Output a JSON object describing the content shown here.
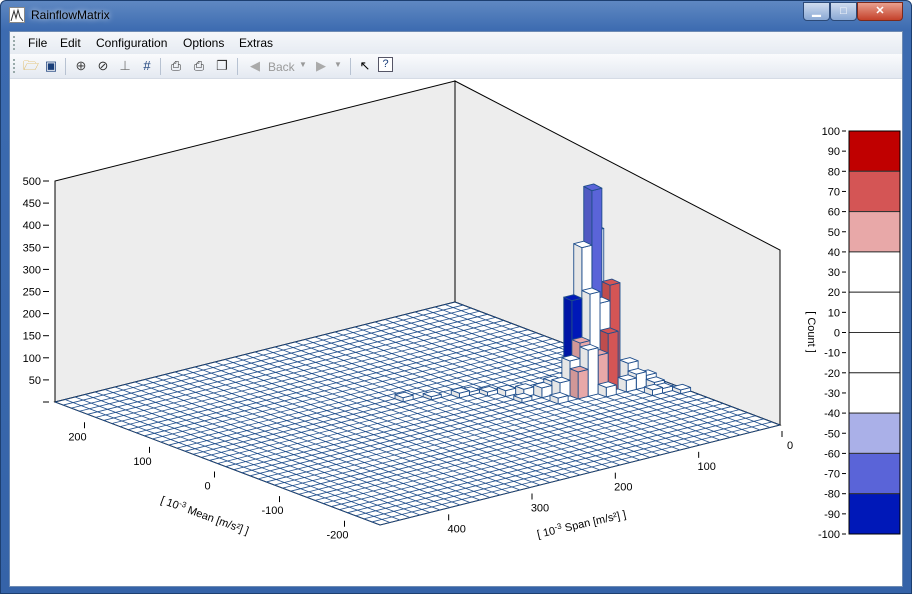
{
  "window": {
    "title": "RainflowMatrix",
    "buttons": [
      "minimize",
      "maximize",
      "close"
    ]
  },
  "menu": [
    "File",
    "Edit",
    "Configuration",
    "Options",
    "Extras"
  ],
  "toolbar": {
    "items": [
      {
        "icon": "open-folder-icon"
      },
      {
        "icon": "save-icon"
      },
      {
        "icon": "zoom-in-icon"
      },
      {
        "icon": "zoom-reset-icon"
      },
      {
        "icon": "axis-icon"
      },
      {
        "icon": "grid-icon"
      },
      {
        "icon": "print-preview-icon"
      },
      {
        "icon": "print-icon"
      },
      {
        "icon": "copy-icon"
      },
      {
        "icon": "back-icon"
      },
      {
        "icon": "forward-icon"
      },
      {
        "icon": "pointer-icon"
      },
      {
        "icon": "help-icon"
      }
    ],
    "back_label": "Back"
  },
  "chart_data": {
    "type": "bar3d",
    "x_axis": {
      "label_prefix": "[ 10",
      "label_exp": "-3",
      "label_suffix": " Span [m/s²] ]",
      "range": [
        0,
        480
      ],
      "ticks": [
        "0",
        "100",
        "200",
        "300",
        "400"
      ],
      "tick_values": [
        0,
        100,
        200,
        300,
        400
      ]
    },
    "y_axis": {
      "label_prefix": "[ 10",
      "label_exp": "-3",
      "label_suffix": " Mean [m/s²] ]",
      "range": [
        -250,
        250
      ],
      "ticks": [
        "200",
        "100",
        "0",
        "-100",
        "-200"
      ],
      "tick_values": [
        200,
        100,
        0,
        -100,
        -200
      ]
    },
    "z_axis": {
      "range": [
        0,
        500
      ],
      "ticks": [
        "",
        "50",
        "100",
        "150",
        "200",
        "250",
        "300",
        "350",
        "400",
        "450",
        "500"
      ],
      "tick_values": [
        0,
        50,
        100,
        150,
        200,
        250,
        300,
        350,
        400,
        450,
        500
      ]
    },
    "legend": {
      "title": "[ Count ]",
      "ticks": [
        "100",
        "90",
        "80",
        "70",
        "60",
        "50",
        "40",
        "30",
        "20",
        "10",
        "0",
        "-10",
        "-20",
        "-30",
        "-40",
        "-50",
        "-60",
        "-70",
        "-80",
        "-90",
        "-100"
      ],
      "bands": [
        {
          "from": 80,
          "to": 100,
          "color": "#c00000"
        },
        {
          "from": 60,
          "to": 80,
          "color": "#d45555"
        },
        {
          "from": 40,
          "to": 60,
          "color": "#e8a8a8"
        },
        {
          "from": 20,
          "to": 40,
          "color": "#ffffff"
        },
        {
          "from": 0,
          "to": 20,
          "color": "#ffffff"
        },
        {
          "from": -20,
          "to": 0,
          "color": "#ffffff"
        },
        {
          "from": -40,
          "to": -20,
          "color": "#ffffff"
        },
        {
          "from": -60,
          "to": -40,
          "color": "#aab0e8"
        },
        {
          "from": -80,
          "to": -60,
          "color": "#5a64d8"
        },
        {
          "from": -100,
          "to": -80,
          "color": "#0018b8"
        }
      ]
    },
    "cell": {
      "span": 12,
      "mean": 12.5
    },
    "bars": [
      {
        "span": 48,
        "mean": -37.5,
        "count": 500,
        "color": "#5a64d8"
      },
      {
        "span": 36,
        "mean": -25,
        "count": 380,
        "color": "#ffffff"
      },
      {
        "span": 60,
        "mean": -37.5,
        "count": 360,
        "color": "#ffffff"
      },
      {
        "span": 36,
        "mean": -50,
        "count": 260,
        "color": "#d45555"
      },
      {
        "span": 48,
        "mean": -50,
        "count": 220,
        "color": "#ffffff"
      },
      {
        "span": 48,
        "mean": -62.5,
        "count": 150,
        "color": "#d45555"
      },
      {
        "span": 60,
        "mean": -50,
        "count": 250,
        "color": "#ffffff"
      },
      {
        "span": 72,
        "mean": -37.5,
        "count": 230,
        "color": "#0018b8"
      },
      {
        "span": 72,
        "mean": -50,
        "count": 130,
        "color": "#e8a8a8"
      },
      {
        "span": 60,
        "mean": -62.5,
        "count": 100,
        "color": "#e8a8a8"
      },
      {
        "span": 72,
        "mean": -62.5,
        "count": 120,
        "color": "#ffffff"
      },
      {
        "span": 84,
        "mean": -62.5,
        "count": 70,
        "color": "#e8a8a8"
      },
      {
        "span": 84,
        "mean": -50,
        "count": 90,
        "color": "#ffffff"
      },
      {
        "span": 24,
        "mean": -62.5,
        "count": 60,
        "color": "#ffffff"
      },
      {
        "span": 24,
        "mean": -75,
        "count": 40,
        "color": "#ffffff"
      },
      {
        "span": 12,
        "mean": -75,
        "count": 30,
        "color": "#ffffff"
      },
      {
        "span": 12,
        "mean": -87.5,
        "count": 20,
        "color": "#ffffff"
      },
      {
        "span": 36,
        "mean": -75,
        "count": 30,
        "color": "#ffffff"
      },
      {
        "span": 96,
        "mean": -50,
        "count": 40,
        "color": "#ffffff"
      },
      {
        "span": 96,
        "mean": -37.5,
        "count": 35,
        "color": "#ffffff"
      },
      {
        "span": 108,
        "mean": -37.5,
        "count": 25,
        "color": "#ffffff"
      },
      {
        "span": 60,
        "mean": -75,
        "count": 25,
        "color": "#ffffff"
      },
      {
        "span": 120,
        "mean": -25,
        "count": 20,
        "color": "#ffffff"
      },
      {
        "span": 144,
        "mean": 0,
        "count": 10,
        "color": "#ffffff"
      },
      {
        "span": 168,
        "mean": 12.5,
        "count": 12,
        "color": "#ffffff"
      },
      {
        "span": 192,
        "mean": 25,
        "count": 8,
        "color": "#ffffff"
      },
      {
        "span": 216,
        "mean": 37.5,
        "count": 10,
        "color": "#ffffff"
      },
      {
        "span": 132,
        "mean": -12.5,
        "count": 15,
        "color": "#ffffff"
      },
      {
        "span": 156,
        "mean": 12.5,
        "count": 8,
        "color": "#ffffff"
      },
      {
        "span": 24,
        "mean": -100,
        "count": 15,
        "color": "#ffffff"
      },
      {
        "span": 0,
        "mean": -112.5,
        "count": 10,
        "color": "#ffffff"
      },
      {
        "span": 12,
        "mean": -100,
        "count": 12,
        "color": "#ffffff"
      },
      {
        "span": 108,
        "mean": -62.5,
        "count": 15,
        "color": "#ffffff"
      },
      {
        "span": 132,
        "mean": -37.5,
        "count": 10,
        "color": "#ffffff"
      }
    ],
    "colors": {
      "grid": "#1f4e8c",
      "wall": "#ededed"
    }
  }
}
